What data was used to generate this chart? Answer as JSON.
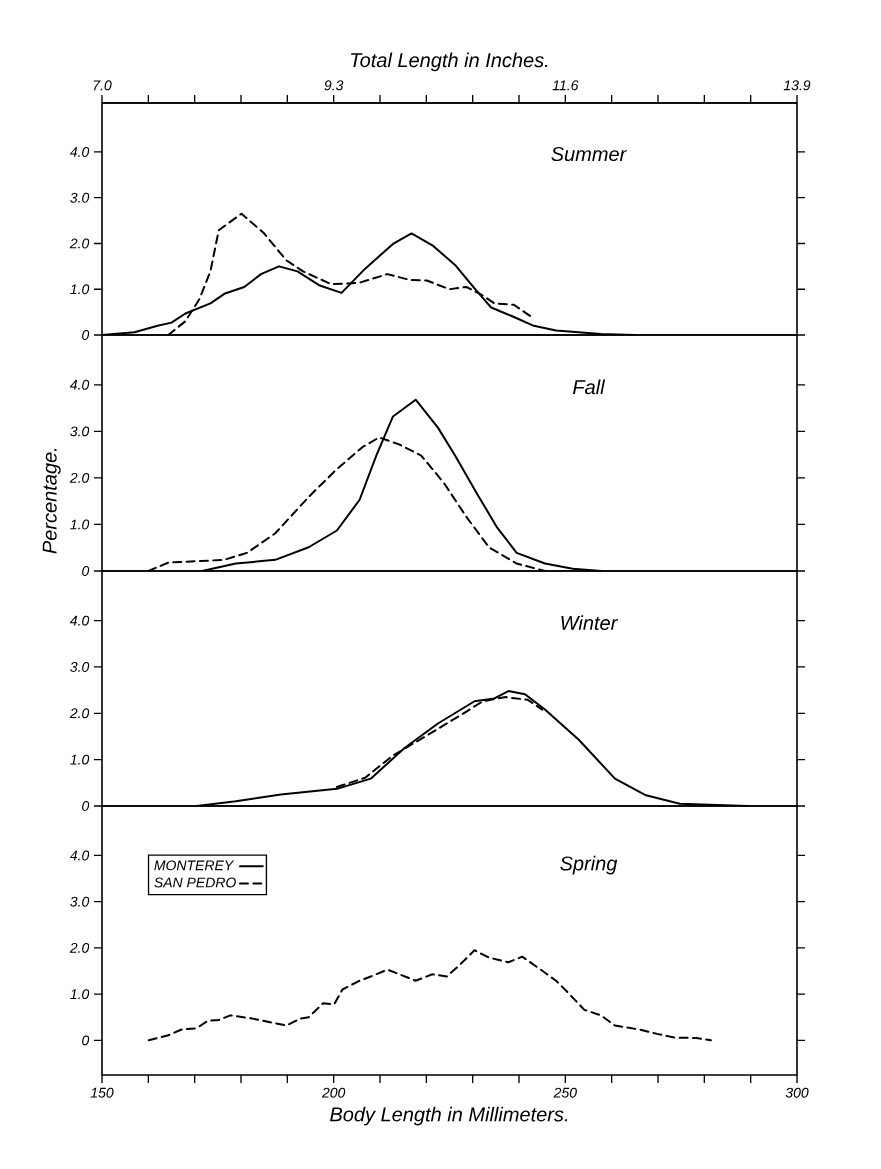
{
  "chart_data": [
    {
      "type": "line",
      "title": "Summer",
      "x2label": "Total Length in Inches.",
      "xlim": [
        150,
        300
      ],
      "ylim": [
        0,
        5.07
      ],
      "x2lim": [
        7.0,
        13.9
      ],
      "x2ticks": [
        {
          "value": 7.0,
          "label": "7.0"
        },
        {
          "value": 7.46,
          "label": null
        },
        {
          "value": 7.92,
          "label": null
        },
        {
          "value": 8.38,
          "label": null
        },
        {
          "value": 8.84,
          "label": null
        },
        {
          "value": 9.3,
          "label": "9.3"
        },
        {
          "value": 9.76,
          "label": null
        },
        {
          "value": 10.22,
          "label": null
        },
        {
          "value": 10.68,
          "label": null
        },
        {
          "value": 11.14,
          "label": null
        },
        {
          "value": 11.6,
          "label": "11.6"
        },
        {
          "value": 12.06,
          "label": null
        },
        {
          "value": 12.52,
          "label": null
        },
        {
          "value": 12.98,
          "label": null
        },
        {
          "value": 13.44,
          "label": null
        },
        {
          "value": 13.9,
          "label": "13.9"
        }
      ],
      "yticks": [
        0,
        {
          "value": 1,
          "label": "1.0"
        },
        {
          "value": 2,
          "label": "2.0"
        },
        {
          "value": 3,
          "label": "3.0"
        },
        {
          "value": 4,
          "label": "4.0"
        }
      ],
      "tick_labels": "y",
      "series": [
        {
          "color": "#000000",
          "line_style": "solid",
          "x": [
            150,
            157,
            162,
            165,
            168,
            173.4,
            176.4,
            180.7,
            184.3,
            188.2,
            192.2,
            197,
            201.7,
            206.8,
            212.8,
            216.8,
            221.3,
            226.2,
            230.4,
            234,
            238.3,
            243.2,
            248,
            252.9,
            257.7,
            265
          ],
          "values": [
            0,
            0.06,
            0.2,
            0.27,
            0.47,
            0.69,
            0.9,
            1.05,
            1.33,
            1.5,
            1.39,
            1.08,
            0.92,
            1.45,
            1.99,
            2.22,
            1.96,
            1.53,
            1.02,
            0.6,
            0.42,
            0.2,
            0.1,
            0.06,
            0.02,
            0
          ]
        },
        {
          "color": "#000000",
          "line_style": "dashed",
          "x": [
            164.3,
            168,
            171,
            173.4,
            175.2,
            180.1,
            184.9,
            189.8,
            193.4,
            199.5,
            205.5,
            211.6,
            216.5,
            220.1,
            225,
            228.6,
            231.6,
            234.7,
            238.9,
            243.2
          ],
          "values": [
            0,
            0.3,
            0.78,
            1.39,
            2.29,
            2.65,
            2.23,
            1.63,
            1.39,
            1.11,
            1.14,
            1.33,
            1.2,
            1.19,
            1.0,
            1.05,
            0.9,
            0.69,
            0.66,
            0.36
          ]
        }
      ]
    },
    {
      "type": "line",
      "title": "Fall",
      "ylabel": "Percentage.",
      "xlim": [
        150,
        300
      ],
      "ylim": [
        0,
        5.07
      ],
      "yticks": [
        0,
        {
          "value": 1,
          "label": "1.0"
        },
        {
          "value": 2,
          "label": "2.0"
        },
        {
          "value": 3,
          "label": "3.0"
        },
        {
          "value": 4,
          "label": "4.0"
        }
      ],
      "tick_labels": "y",
      "series": [
        {
          "color": "#000000",
          "line_style": "solid",
          "x": [
            171.6,
            178.9,
            187.4,
            194.6,
            200.7,
            205.6,
            209.2,
            212.8,
            217.7,
            222.5,
            226.2,
            231,
            235.3,
            239.5,
            245.6,
            251.6,
            257.7
          ],
          "values": [
            0,
            0.16,
            0.24,
            0.51,
            0.87,
            1.53,
            2.48,
            3.32,
            3.68,
            3.08,
            2.48,
            1.65,
            0.93,
            0.39,
            0.16,
            0.05,
            0
          ]
        },
        {
          "color": "#000000",
          "line_style": "dashed",
          "x": [
            160,
            164.3,
            170.4,
            176.4,
            181.3,
            187.4,
            194.6,
            200.7,
            206.2,
            209.8,
            214.1,
            218.9,
            223.8,
            228.6,
            233.5,
            239.5,
            245.6
          ],
          "values": [
            0,
            0.18,
            0.21,
            0.24,
            0.39,
            0.81,
            1.59,
            2.19,
            2.66,
            2.87,
            2.72,
            2.48,
            1.89,
            1.17,
            0.51,
            0.16,
            0
          ]
        }
      ]
    },
    {
      "type": "line",
      "title": "Winter",
      "xlim": [
        150,
        300
      ],
      "ylim": [
        0,
        5.07
      ],
      "yticks": [
        0,
        {
          "value": 1,
          "label": "1.0"
        },
        {
          "value": 2,
          "label": "2.0"
        },
        {
          "value": 3,
          "label": "3.0"
        },
        {
          "value": 4,
          "label": "4.0"
        }
      ],
      "tick_labels": "y",
      "series": [
        {
          "color": "#000000",
          "line_style": "solid",
          "x": [
            170.4,
            178.9,
            188.6,
            200.7,
            208,
            215.3,
            222.5,
            230.4,
            234.7,
            237.7,
            241.3,
            245.6,
            252.9,
            260.7,
            267.4,
            274.7,
            289.3
          ],
          "values": [
            0,
            0.1,
            0.25,
            0.37,
            0.59,
            1.25,
            1.78,
            2.26,
            2.32,
            2.48,
            2.41,
            2.08,
            1.43,
            0.59,
            0.23,
            0.05,
            0
          ]
        },
        {
          "color": "#000000",
          "line_style": "dashed",
          "x": [
            200.7,
            206.8,
            212.8,
            220.1,
            227.4,
            232.2,
            237.1,
            241.9,
            245
          ],
          "values": [
            0.41,
            0.61,
            1.09,
            1.52,
            1.96,
            2.26,
            2.35,
            2.29,
            2.08
          ]
        }
      ]
    },
    {
      "type": "line",
      "title": "Spring",
      "xlabel": "Body Length in Millimeters.",
      "xlim": [
        150,
        300
      ],
      "ylim": [
        -0.75,
        5.07
      ],
      "xticks": [
        150,
        {
          "value": 160,
          "label": null
        },
        {
          "value": 170,
          "label": null
        },
        {
          "value": 180,
          "label": null
        },
        {
          "value": 190,
          "label": null
        },
        200,
        {
          "value": 210,
          "label": null
        },
        {
          "value": 220,
          "label": null
        },
        {
          "value": 230,
          "label": null
        },
        {
          "value": 240,
          "label": null
        },
        250,
        {
          "value": 260,
          "label": null
        },
        {
          "value": 270,
          "label": null
        },
        {
          "value": 280,
          "label": null
        },
        {
          "value": 290,
          "label": null
        },
        300
      ],
      "yticks": [
        0,
        {
          "value": 1,
          "label": "1.0"
        },
        {
          "value": 2,
          "label": "2.0"
        },
        {
          "value": 3,
          "label": "3.0"
        },
        {
          "value": 4,
          "label": "4.0"
        }
      ],
      "legend": "top left",
      "series": [
        {
          "name": "MONTEREY",
          "color": "#000000",
          "line_style": "solid"
        },
        {
          "name": "SAN PEDRO",
          "color": "#000000",
          "line_style": "dashed",
          "x": [
            160.1,
            164.3,
            167.3,
            170.4,
            172.8,
            175.2,
            177.7,
            182.5,
            189.8,
            192.8,
            194.6,
            197.7,
            200.1,
            201.9,
            205.6,
            208,
            211.6,
            217.7,
            221.3,
            224.4,
            227.4,
            230.4,
            233.5,
            237.7,
            240.7,
            244.4,
            248,
            250.4,
            254.1,
            257.7,
            260.7,
            266.2,
            269.8,
            273.5,
            278.3,
            281.4
          ],
          "values": [
            0,
            0.11,
            0.24,
            0.26,
            0.42,
            0.44,
            0.54,
            0.47,
            0.32,
            0.47,
            0.5,
            0.8,
            0.78,
            1.1,
            1.29,
            1.38,
            1.53,
            1.29,
            1.43,
            1.38,
            1.65,
            1.95,
            1.79,
            1.69,
            1.81,
            1.55,
            1.29,
            1.05,
            0.66,
            0.54,
            0.32,
            0.23,
            0.14,
            0.06,
            0.05,
            0
          ]
        }
      ]
    }
  ]
}
